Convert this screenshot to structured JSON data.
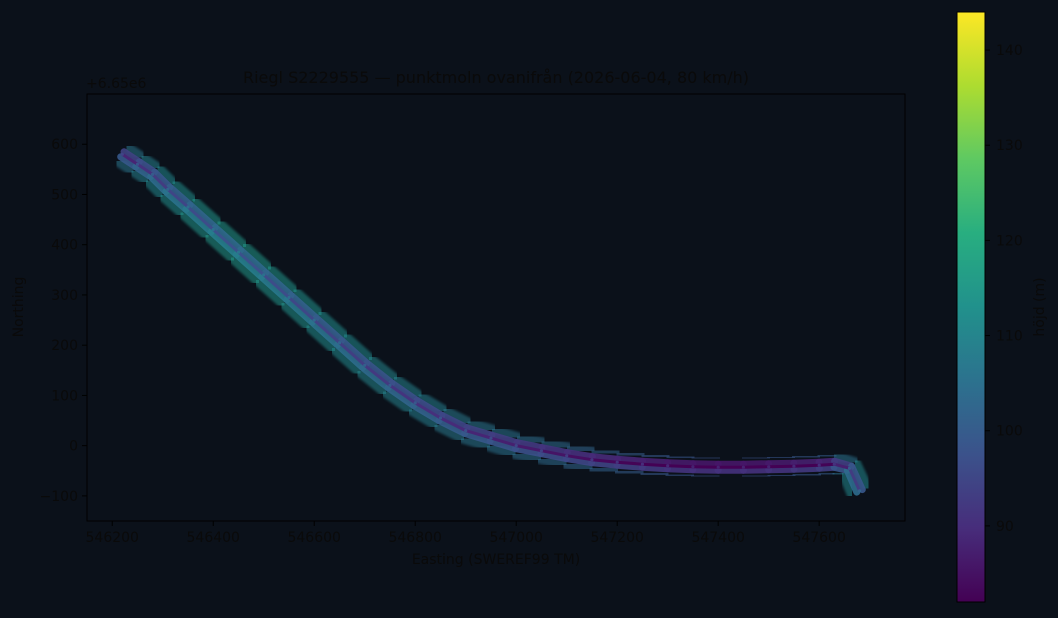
{
  "chart_data": {
    "type": "scatter",
    "title": "Riegl S2229555 — punktmoln ovanifrån (2026-06-04, 80 km/h)",
    "xlabel": "Easting (SWEREF99 TM)",
    "ylabel": "Northing",
    "y_offset_label": "+6.65e6",
    "xlim": [
      546150,
      547770
    ],
    "ylim": [
      -150,
      700
    ],
    "x_ticks": [
      546200,
      546400,
      546600,
      546800,
      547000,
      547200,
      547400,
      547600
    ],
    "y_ticks": [
      -100,
      0,
      100,
      200,
      300,
      400,
      500,
      600
    ],
    "colorbar": {
      "label": "höjd (m)",
      "colormap": "viridis",
      "range": [
        82,
        144
      ],
      "ticks": [
        90,
        100,
        110,
        120,
        130,
        140
      ]
    },
    "series": [
      {
        "x": [
          546220,
          546250,
          546280,
          546310,
          546350,
          546400,
          546450,
          546500,
          546550,
          546600,
          546650,
          546700,
          546750,
          546800,
          546850,
          546900,
          546950,
          547000,
          547050,
          547100,
          547150,
          547200,
          547250,
          547300,
          547350,
          547400,
          547450,
          547500,
          547550,
          547600,
          547630,
          547660,
          547680
        ],
        "y": [
          580,
          560,
          540,
          510,
          475,
          430,
          385,
          340,
          295,
          250,
          205,
          160,
          120,
          85,
          55,
          30,
          15,
          0,
          -10,
          -20,
          -28,
          -33,
          -37,
          -40,
          -42,
          -43,
          -43,
          -42,
          -41,
          -39,
          -37,
          -45,
          -90
        ],
        "z": [
          95,
          98,
          100,
          102,
          104,
          105,
          106,
          105,
          104,
          103,
          102,
          101,
          100,
          99,
          98,
          97,
          96,
          95,
          94,
          93,
          92,
          91,
          90,
          89,
          88,
          88,
          88,
          88,
          89,
          90,
          91,
          100,
          102
        ]
      }
    ]
  }
}
